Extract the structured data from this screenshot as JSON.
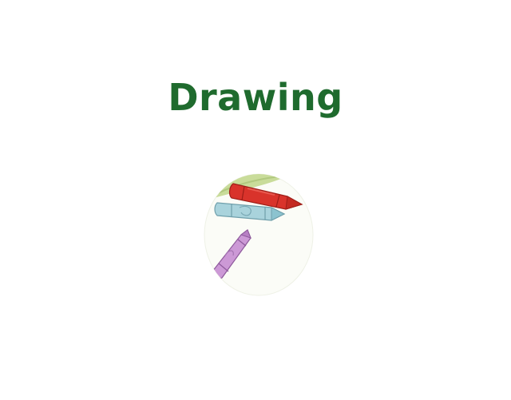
{
  "screen": {
    "title": "Drawing",
    "title_color": "#1f6b2e",
    "background": "#ffffff"
  },
  "activity_icon": {
    "name": "crayons-icon",
    "crayons": [
      {
        "color": "red",
        "fill": "#d9332b"
      },
      {
        "color": "light-blue",
        "fill": "#a9d3dc"
      },
      {
        "color": "lavender",
        "fill": "#cc99d6"
      }
    ],
    "accent_leaf": "#c9dc9a"
  }
}
